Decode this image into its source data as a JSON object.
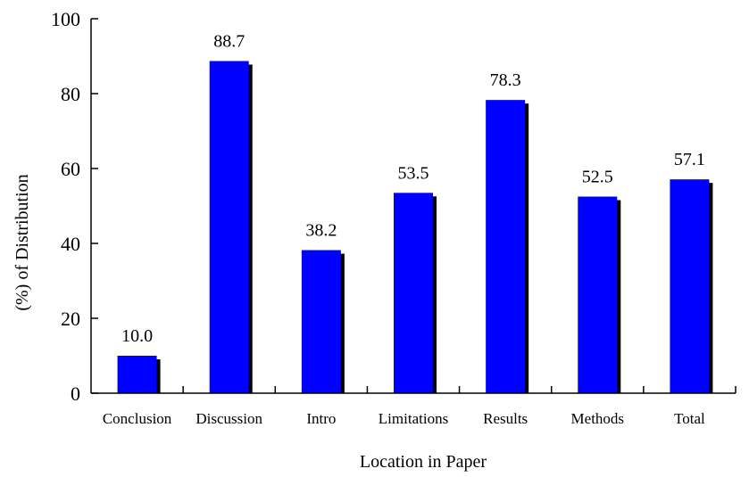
{
  "chart_data": {
    "type": "bar",
    "categories": [
      "Conclusion",
      "Discussion",
      "Intro",
      "Limitations",
      "Results",
      "Methods",
      "Total"
    ],
    "values": [
      10.0,
      88.7,
      38.2,
      53.5,
      78.3,
      52.5,
      57.1
    ],
    "data_labels": [
      "10.0",
      "88.7",
      "38.2",
      "53.5",
      "78.3",
      "52.5",
      "57.1"
    ],
    "xlabel": "Location in Paper",
    "ylabel": "(%)  of  Distribution",
    "ylim": [
      0,
      100
    ],
    "yticks": [
      "0",
      "20",
      "40",
      "60",
      "80",
      "100"
    ],
    "grid": false,
    "legend": "none",
    "bar_color": "#0000ff",
    "shadow_color": "#000000"
  }
}
